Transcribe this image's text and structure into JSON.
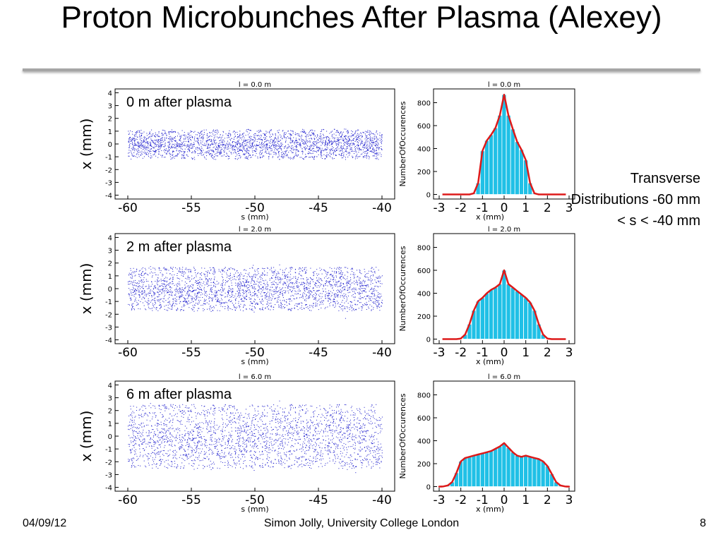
{
  "slide": {
    "title": "Proton Microbunches After Plasma (Alexey)",
    "side_caption": "Transverse Distributions -60 mm < s < -40 mm",
    "footer_date": "04/09/12",
    "footer_author": "Simon Jolly, University College London",
    "page_number": "8"
  },
  "chart_data": [
    {
      "type": "scatter",
      "panel_title": "l = 0.0 m",
      "annotation": "0 m after plasma",
      "xlabel": "s (mm)",
      "ylabel": "x (mm)",
      "xlim": [
        -61,
        -39
      ],
      "ylim": [
        -4.3,
        4.3
      ],
      "xticks": [
        -60,
        -55,
        -50,
        -45,
        -40
      ],
      "yticks": [
        4,
        3,
        2,
        1,
        0,
        -1,
        -2,
        -3,
        -4
      ],
      "x_range_of_particles": [
        -60,
        -40
      ],
      "transverse_extent_mm": 1.2,
      "color": "#1a1acc"
    },
    {
      "type": "bar",
      "panel_title": "l = 0.0 m",
      "xlabel": "x (mm)",
      "ylabel": "NumberOfOccurences",
      "xlim": [
        -3,
        3
      ],
      "ylim": [
        -40,
        920
      ],
      "xticks": [
        -3,
        -2,
        -1,
        0,
        1,
        2,
        3
      ],
      "yticks": [
        0,
        200,
        400,
        600,
        800
      ],
      "x": [
        -1.4,
        -1.2,
        -1.0,
        -0.8,
        -0.6,
        -0.4,
        -0.2,
        0.0,
        0.2,
        0.4,
        0.6,
        0.8,
        1.0,
        1.2,
        1.4
      ],
      "values": [
        10,
        100,
        380,
        470,
        520,
        580,
        690,
        870,
        690,
        570,
        460,
        390,
        300,
        100,
        10
      ],
      "fit_line_color": "#dd1a1a",
      "bar_color": "#20c0e6"
    },
    {
      "type": "scatter",
      "panel_title": "l = 2.0 m",
      "annotation": "2 m after plasma",
      "xlabel": "s (mm)",
      "ylabel": "x (mm)",
      "xlim": [
        -61,
        -39
      ],
      "ylim": [
        -4.3,
        4.3
      ],
      "xticks": [
        -60,
        -55,
        -50,
        -45,
        -40
      ],
      "yticks": [
        4,
        3,
        2,
        1,
        0,
        -1,
        -2,
        -3,
        -4
      ],
      "x_range_of_particles": [
        -60,
        -40
      ],
      "transverse_extent_mm": 1.7,
      "color": "#1a1acc"
    },
    {
      "type": "bar",
      "panel_title": "l = 2.0 m",
      "xlabel": "x (mm)",
      "ylabel": "NumberOfOccurences",
      "xlim": [
        -3,
        3
      ],
      "ylim": [
        -40,
        920
      ],
      "xticks": [
        -3,
        -2,
        -1,
        0,
        1,
        2,
        3
      ],
      "yticks": [
        0,
        200,
        400,
        600,
        800
      ],
      "x": [
        -2.0,
        -1.8,
        -1.6,
        -1.4,
        -1.2,
        -1.0,
        -0.8,
        -0.6,
        -0.4,
        -0.2,
        0.0,
        0.2,
        0.4,
        0.6,
        0.8,
        1.0,
        1.2,
        1.4,
        1.6,
        1.8,
        2.0
      ],
      "values": [
        5,
        40,
        130,
        250,
        330,
        360,
        400,
        430,
        450,
        480,
        600,
        480,
        450,
        420,
        390,
        360,
        320,
        250,
        130,
        40,
        5
      ],
      "fit_line_color": "#dd1a1a",
      "bar_color": "#20c0e6"
    },
    {
      "type": "scatter",
      "panel_title": "l = 6.0 m",
      "annotation": "6 m after plasma",
      "xlabel": "s (mm)",
      "ylabel": "x (mm)",
      "xlim": [
        -61,
        -39
      ],
      "ylim": [
        -4.3,
        4.3
      ],
      "xticks": [
        -60,
        -55,
        -50,
        -45,
        -40
      ],
      "yticks": [
        4,
        3,
        2,
        1,
        0,
        -1,
        -2,
        -3,
        -4
      ],
      "x_range_of_particles": [
        -60,
        -40
      ],
      "transverse_extent_mm": 2.5,
      "color": "#1a1acc"
    },
    {
      "type": "bar",
      "panel_title": "l = 6.0 m",
      "xlabel": "x (mm)",
      "ylabel": "NumberOfOccurences",
      "xlim": [
        -3,
        3
      ],
      "ylim": [
        -40,
        920
      ],
      "xticks": [
        -3,
        -2,
        -1,
        0,
        1,
        2,
        3
      ],
      "yticks": [
        0,
        200,
        400,
        600,
        800
      ],
      "x": [
        -2.8,
        -2.6,
        -2.4,
        -2.2,
        -2.0,
        -1.8,
        -1.6,
        -1.4,
        -1.2,
        -1.0,
        -0.8,
        -0.6,
        -0.4,
        -0.2,
        0.0,
        0.2,
        0.4,
        0.6,
        0.8,
        1.0,
        1.2,
        1.4,
        1.6,
        1.8,
        2.0,
        2.2,
        2.4,
        2.6,
        2.8
      ],
      "values": [
        2,
        10,
        40,
        120,
        220,
        250,
        260,
        270,
        280,
        290,
        300,
        310,
        330,
        350,
        380,
        340,
        300,
        270,
        260,
        270,
        260,
        250,
        240,
        220,
        180,
        110,
        40,
        10,
        2
      ],
      "fit_line_color": "#dd1a1a",
      "bar_color": "#20c0e6"
    }
  ]
}
